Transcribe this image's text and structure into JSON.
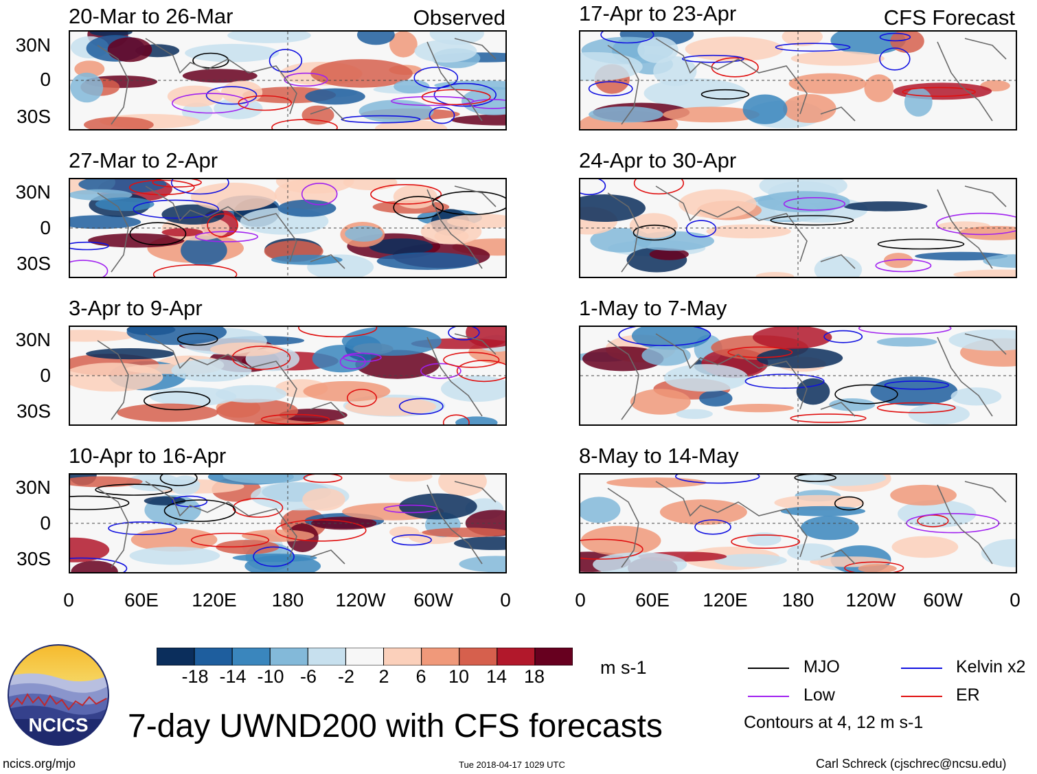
{
  "chart_data": {
    "type": "heatmap",
    "title": "7-day UWND200 with CFS forecasts",
    "variable": "UWND200",
    "units": "m s-1",
    "colorbar": {
      "ticks": [
        "-18",
        "-14",
        "-10",
        "-6",
        "-2",
        "2",
        "6",
        "10",
        "14",
        "18"
      ],
      "colors": [
        "#0b2e5c",
        "#1e5e9e",
        "#3a86bd",
        "#83b9d9",
        "#c7e0ee",
        "#f7f7f7",
        "#fbd0bb",
        "#f0997a",
        "#d6604d",
        "#b2182b",
        "#67001f"
      ]
    },
    "x_ticks": [
      "0",
      "60E",
      "120E",
      "180",
      "120W",
      "60W",
      "0"
    ],
    "y_ticks": [
      "30N",
      "0",
      "30S"
    ],
    "observed_label": "Observed",
    "forecast_label": "CFS Forecast",
    "panels": [
      {
        "title": "20-Mar to 26-Mar",
        "type": "observed"
      },
      {
        "title": "27-Mar to 2-Apr",
        "type": "observed"
      },
      {
        "title": "3-Apr to 9-Apr",
        "type": "observed"
      },
      {
        "title": "10-Apr to 16-Apr",
        "type": "observed"
      },
      {
        "title": "17-Apr to 23-Apr",
        "type": "forecast"
      },
      {
        "title": "24-Apr to 30-Apr",
        "type": "forecast"
      },
      {
        "title": "1-May to 7-May",
        "type": "forecast"
      },
      {
        "title": "8-May to 14-May",
        "type": "forecast"
      }
    ],
    "contour_legend": [
      {
        "name": "MJO",
        "color": "#000000"
      },
      {
        "name": "Kelvin x2",
        "color": "#1010e0"
      },
      {
        "name": "Low",
        "color": "#a020f0"
      },
      {
        "name": "ER",
        "color": "#e01010"
      }
    ],
    "contour_note": "Contours at 4, 12 m s-1"
  },
  "footer": {
    "logo_text": "NCICS",
    "site": "ncics.org/mjo",
    "timestamp": "Tue 2018-04-17 1029 UTC",
    "author": "Carl Schreck (cjschrec@ncsu.edu)"
  }
}
